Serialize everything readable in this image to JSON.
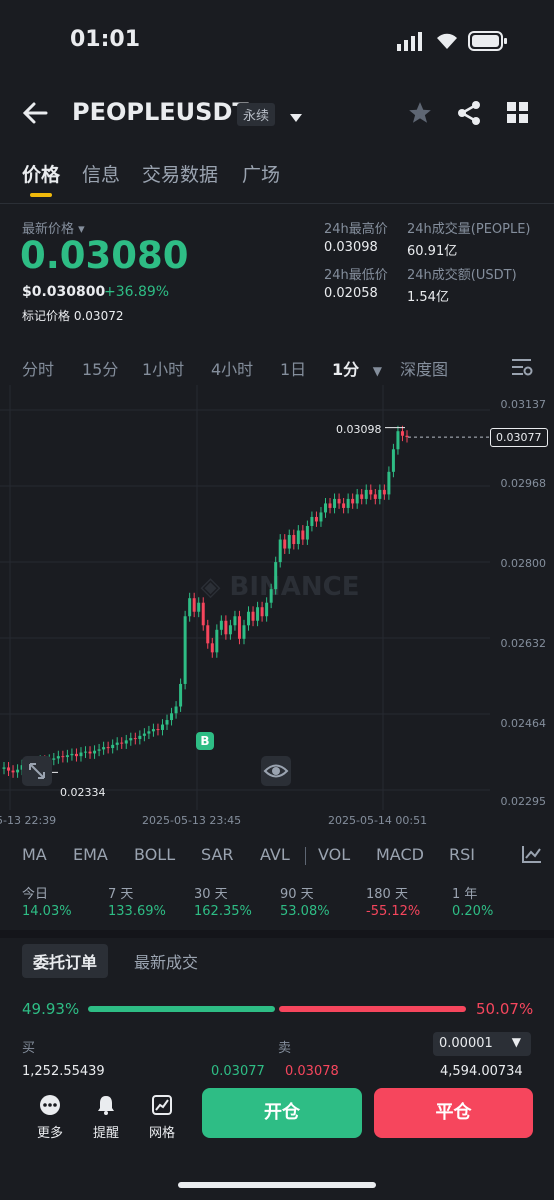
{
  "status_bar": {
    "time": "01:01"
  },
  "header": {
    "symbol": "PEOPLEUSDT",
    "contract_tag": "永续"
  },
  "tabs": [
    {
      "label": "价格"
    },
    {
      "label": "信息"
    },
    {
      "label": "交易数据"
    },
    {
      "label": "广场"
    }
  ],
  "price": {
    "last_price_label": "最新价格",
    "last_price": "0.03080",
    "usd_price": "$0.030800",
    "change_pct": "+36.89%",
    "mark_price_label": "标记价格",
    "mark_price": "0.03072"
  },
  "stats": {
    "high_label": "24h最高价",
    "high": "0.03098",
    "low_label": "24h最低价",
    "low": "0.02058",
    "vol_label": "24h成交量(PEOPLE)",
    "vol": "60.91亿",
    "amount_label": "24h成交额(USDT)",
    "amount": "1.54亿"
  },
  "timeframes": [
    "分时",
    "15分",
    "1小时",
    "4小时",
    "1日",
    "1分",
    "深度图"
  ],
  "chart_data": {
    "type": "candlestick",
    "y_ticks": [
      "0.03137",
      "0.02968",
      "0.02800",
      "0.02632",
      "0.02464",
      "0.02295"
    ],
    "ylim": [
      0.02295,
      0.03137
    ],
    "x_ticks": [
      "5-13 22:39",
      "2025-05-13 23:45",
      "2025-05-14 00:51"
    ],
    "high_marker": "0.03098",
    "low_marker": "0.02334",
    "current_price_tag": "0.03077",
    "buy_marker": "B",
    "watermark": "BINANCE",
    "close_series": [
      0.02345,
      0.02338,
      0.02334,
      0.0234,
      0.0235,
      0.02352,
      0.02348,
      0.02355,
      0.0236,
      0.02358,
      0.02362,
      0.02365,
      0.0237,
      0.02368,
      0.02372,
      0.02375,
      0.0237,
      0.02378,
      0.0238,
      0.02376,
      0.02382,
      0.02385,
      0.0239,
      0.02388,
      0.02395,
      0.024,
      0.02398,
      0.02405,
      0.0241,
      0.02408,
      0.02415,
      0.0242,
      0.02425,
      0.0243,
      0.02428,
      0.0244,
      0.0245,
      0.02465,
      0.0248,
      0.0253,
      0.0268,
      0.0272,
      0.0269,
      0.0271,
      0.0266,
      0.0262,
      0.026,
      0.0265,
      0.0267,
      0.0264,
      0.0266,
      0.0268,
      0.0263,
      0.0266,
      0.0269,
      0.0267,
      0.027,
      0.0268,
      0.0271,
      0.0274,
      0.028,
      0.0285,
      0.0283,
      0.0286,
      0.0284,
      0.0287,
      0.0285,
      0.0288,
      0.029,
      0.0289,
      0.0291,
      0.0293,
      0.0292,
      0.0294,
      0.0293,
      0.0292,
      0.0294,
      0.0293,
      0.0295,
      0.0294,
      0.0296,
      0.0295,
      0.0294,
      0.0296,
      0.0295,
      0.03,
      0.0305,
      0.0309,
      0.0308,
      0.03077
    ]
  },
  "indicators": [
    "MA",
    "EMA",
    "BOLL",
    "SAR",
    "AVL",
    "VOL",
    "MACD",
    "RSI"
  ],
  "performance": [
    {
      "label": "今日",
      "value": "14.03%",
      "color": "#2ebd85"
    },
    {
      "label": "7 天",
      "value": "133.69%",
      "color": "#2ebd85"
    },
    {
      "label": "30 天",
      "value": "162.35%",
      "color": "#2ebd85"
    },
    {
      "label": "90 天",
      "value": "53.08%",
      "color": "#2ebd85"
    },
    {
      "label": "180 天",
      "value": "-55.12%",
      "color": "#f6465d"
    },
    {
      "label": "1 年",
      "value": "0.20%",
      "color": "#2ebd85"
    }
  ],
  "orderbook": {
    "tab_active": "委托订单",
    "tab_inactive": "最新成交",
    "buy_pct": "49.93%",
    "sell_pct": "50.07%",
    "buy_ratio": 0.4993,
    "buy_label": "买",
    "sell_label": "卖",
    "precision": "0.00001",
    "row_buy_qty": "1,252.55439",
    "row_buy_price": "0.03077",
    "row_sell_price": "0.03078",
    "row_sell_qty": "4,594.00734"
  },
  "bottom": {
    "more": "更多",
    "alert": "提醒",
    "grid": "网格",
    "open": "开仓",
    "close": "平仓"
  },
  "colors": {
    "green": "#2ebd85",
    "red": "#f6465d",
    "bg": "#1a1c21",
    "accent": "#f0b90b"
  }
}
